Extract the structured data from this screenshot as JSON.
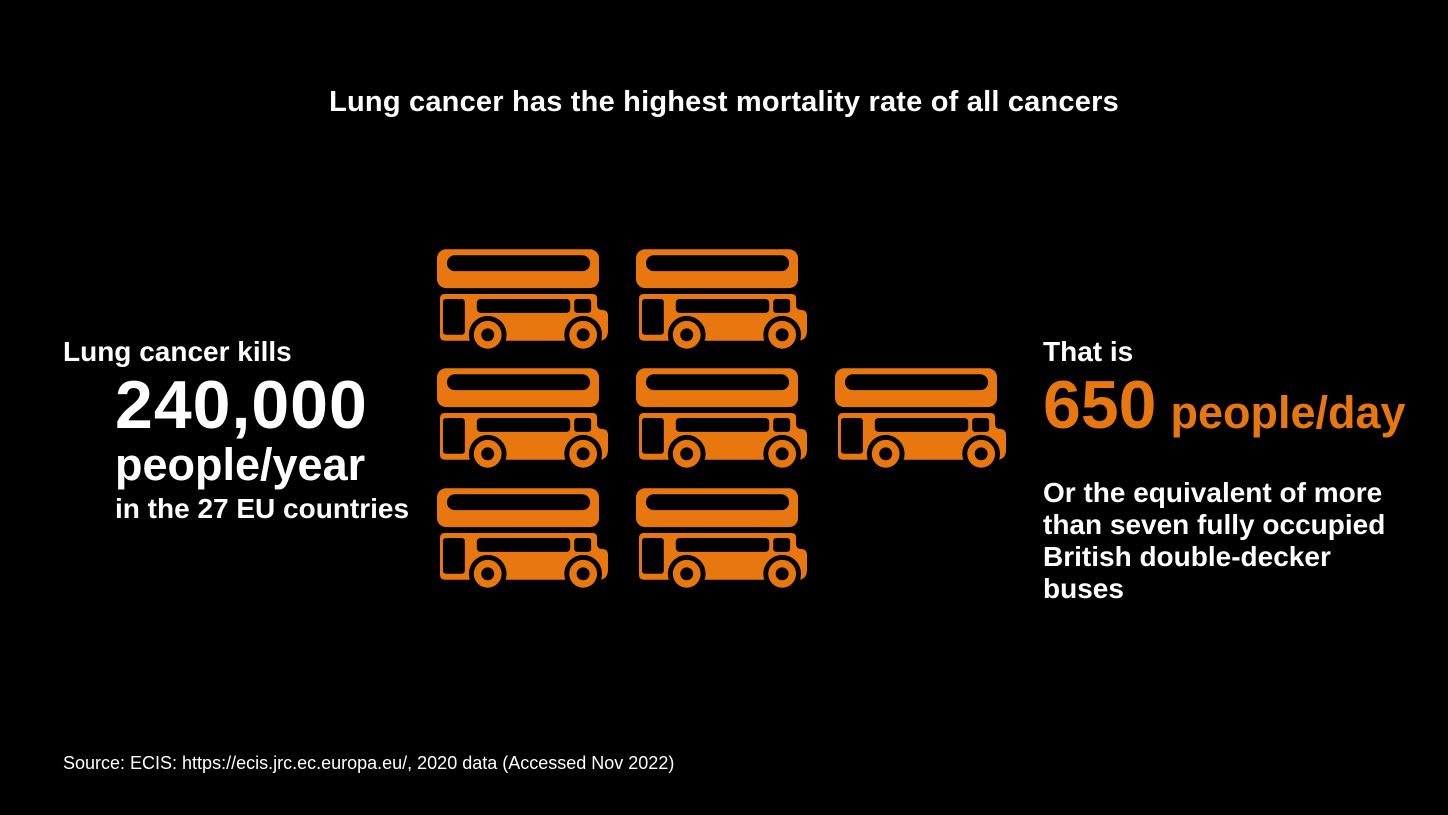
{
  "colors": {
    "background": "#000000",
    "text": "#FFFFFF",
    "accent": "#E8770F"
  },
  "title": "Lung cancer has the highest mortality rate of all cancers",
  "left_stat": {
    "intro": "Lung cancer kills",
    "value": "240,000",
    "unit": "people/year",
    "scope": "in the 27 EU countries"
  },
  "right_stat": {
    "intro": "That is",
    "value": "650",
    "unit": "people/day",
    "equivalence": "Or the equivalent of more\nthan seven fully occupied\nBritish double-decker buses"
  },
  "pictogram": {
    "icon": "double-decker-bus-icon",
    "count": 7,
    "rows": [
      2,
      3,
      2
    ]
  },
  "source": "Source: ECIS: https://ecis.jrc.ec.europa.eu/, 2020 data (Accessed Nov 2022)",
  "chart_data": {
    "type": "pictogram",
    "title": "Lung cancer has the highest mortality rate of all cancers",
    "unit_icon": "british double-decker bus",
    "icon_count": 7,
    "icon_rows": [
      2,
      3,
      2
    ],
    "values": [
      {
        "label": "Lung cancer deaths per year in the 27 EU countries",
        "value": 240000,
        "unit": "people/year"
      },
      {
        "label": "Lung cancer deaths per day",
        "value": 650,
        "unit": "people/day"
      }
    ],
    "annotation": "Or the equivalent of more than seven fully occupied British double-decker buses",
    "source": "Source: ECIS: https://ecis.jrc.ec.europa.eu/, 2020 data (Accessed Nov 2022)"
  }
}
